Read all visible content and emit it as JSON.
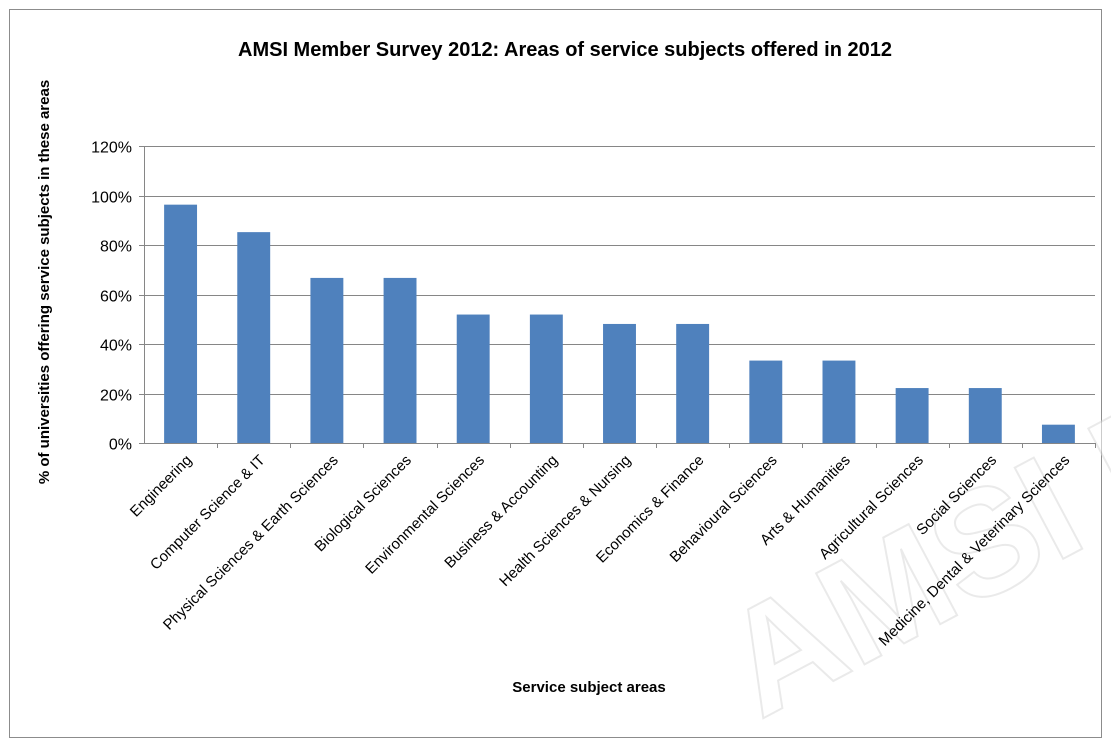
{
  "watermark": "AMSI Member Survey",
  "colors": {
    "bar": "#4F81BD",
    "grid": "#868686",
    "axis": "#868686",
    "text": "#000000",
    "frame": "#8C8C8C"
  },
  "chart_data": {
    "type": "bar",
    "title": "AMSI Member Survey 2012: Areas of service subjects offered in 2012",
    "xlabel": "Service subject areas",
    "ylabel": "% of universities offering service subjects in these areas",
    "ylim": [
      0,
      1.2
    ],
    "yticks": [
      "0%",
      "20%",
      "40%",
      "60%",
      "80%",
      "100%",
      "120%"
    ],
    "grid": true,
    "legend": "none",
    "categories": [
      "Engineering",
      "Computer Science & IT",
      "Physical Sciences & Earth Sciences",
      "Biological Sciences",
      "Environmental Sciences",
      "Business & Accounting",
      "Health Sciences & Nursing",
      "Economics & Finance",
      "Behavioural Sciences",
      "Arts & Humanities",
      "Agricultural Sciences",
      "Social Sciences",
      "Medicine, Dental & Veterinary Sciences"
    ],
    "values": [
      0.963,
      0.852,
      0.667,
      0.667,
      0.519,
      0.519,
      0.481,
      0.481,
      0.333,
      0.333,
      0.222,
      0.222,
      0.074
    ]
  }
}
